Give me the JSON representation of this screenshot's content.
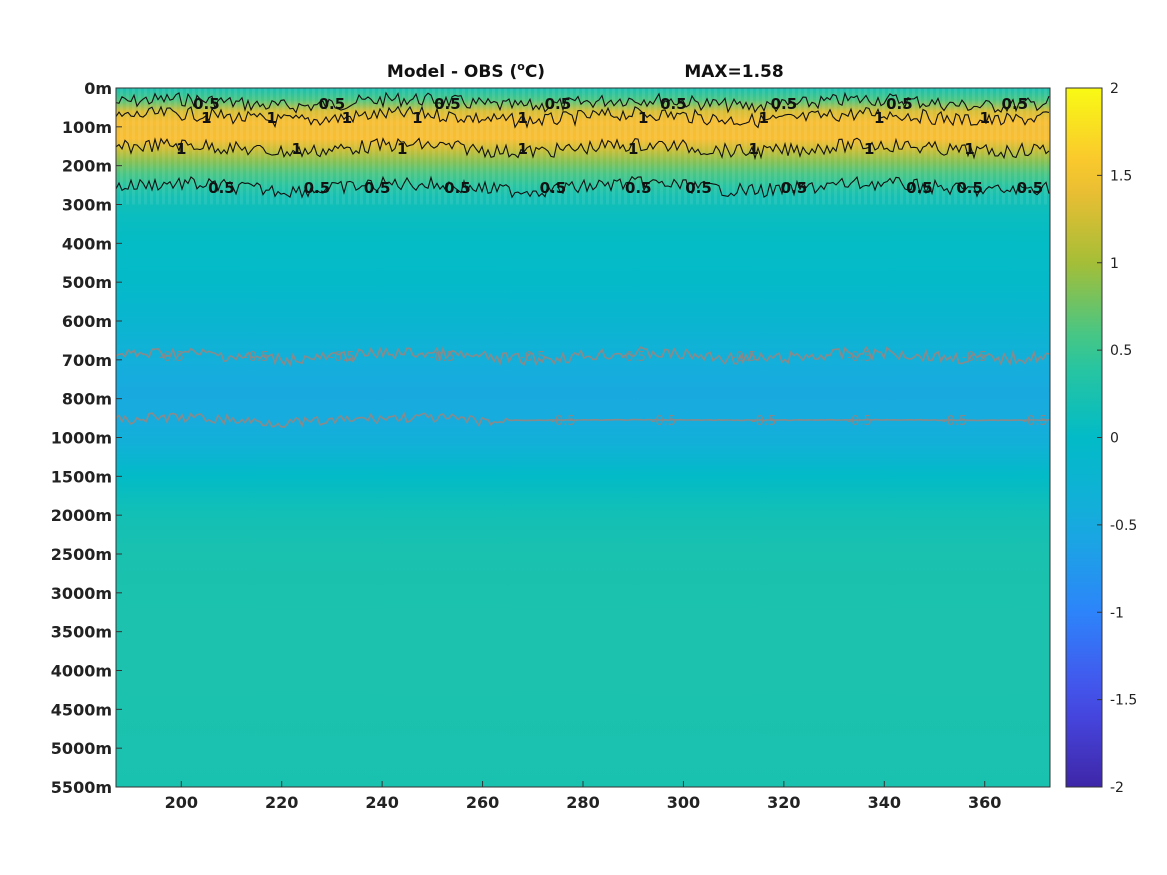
{
  "chart_data": {
    "type": "heatmap",
    "title": "Model - OBS (ᵒC)",
    "title_prefix": "Model - OBS (",
    "title_superscript": "o",
    "title_suffix": "C)",
    "annotation": "MAX=1.58",
    "x_ticks": [
      "200",
      "220",
      "240",
      "260",
      "280",
      "300",
      "320",
      "340",
      "360"
    ],
    "x_tick_values": [
      200,
      220,
      240,
      260,
      280,
      300,
      320,
      340,
      360
    ],
    "xlim": [
      187,
      373
    ],
    "y_ticks": [
      "0m",
      "100m",
      "200m",
      "300m",
      "400m",
      "500m",
      "600m",
      "700m",
      "800m",
      "1000m",
      "1500m",
      "2000m",
      "2500m",
      "3000m",
      "3500m",
      "4000m",
      "4500m",
      "5000m",
      "5500m"
    ],
    "y_axis_reversed": true,
    "colorbar": {
      "ticks": [
        "2",
        "1.5",
        "1",
        "0.5",
        "0",
        "-0.5",
        "-1",
        "-1.5",
        "-2"
      ],
      "tick_values": [
        2,
        1.5,
        1,
        0.5,
        0,
        -0.5,
        -1,
        -1.5,
        -2
      ],
      "range": [
        -2,
        2
      ],
      "colormap": "parula"
    },
    "depth_profile": {
      "depth_index": [
        0,
        0.3,
        0.6,
        0.9,
        1.0,
        1.3,
        1.6,
        1.9,
        2.2,
        2.5,
        2.8,
        3.3,
        4,
        5,
        6,
        6.8,
        7.2,
        7.8,
        8.5,
        9.2,
        10,
        11,
        12,
        13,
        14,
        15,
        16,
        17,
        18
      ],
      "value": [
        0.2,
        0.6,
        1.3,
        1.5,
        1.45,
        1.5,
        1.2,
        0.85,
        0.6,
        0.4,
        0.2,
        0.08,
        0.02,
        -0.05,
        -0.2,
        -0.35,
        -0.45,
        -0.52,
        -0.5,
        -0.35,
        0.0,
        0.18,
        0.24,
        0.26,
        0.27,
        0.27,
        0.26,
        0.25,
        0.24
      ]
    },
    "contours": {
      "black_lines": [
        {
          "level": "0.5",
          "depth_index": 0.38,
          "labels_x": [
            205,
            230,
            253,
            275,
            298,
            320,
            343,
            366
          ]
        },
        {
          "level": "1",
          "depth_index": 0.75,
          "labels_x": [
            205,
            218,
            233,
            247,
            268,
            292,
            316,
            339,
            360
          ]
        },
        {
          "level": "1",
          "depth_index": 1.55,
          "labels_x": [
            200,
            223,
            244,
            268,
            290,
            314,
            337,
            357
          ]
        },
        {
          "level": "0.5",
          "depth_index": 2.55,
          "labels_x": [
            208,
            227,
            239,
            255,
            274,
            291,
            303,
            322,
            347,
            357,
            369
          ]
        }
      ],
      "gray_lines": [
        {
          "level": "-0.5",
          "depth_index": 6.9,
          "labels_x": [
            198,
            215,
            232,
            252,
            270,
            290,
            312,
            335,
            358
          ]
        },
        {
          "level": "-0.5",
          "depth_index": 8.55,
          "labels_x": [
            276,
            296,
            316,
            335,
            354,
            370
          ]
        }
      ]
    }
  }
}
